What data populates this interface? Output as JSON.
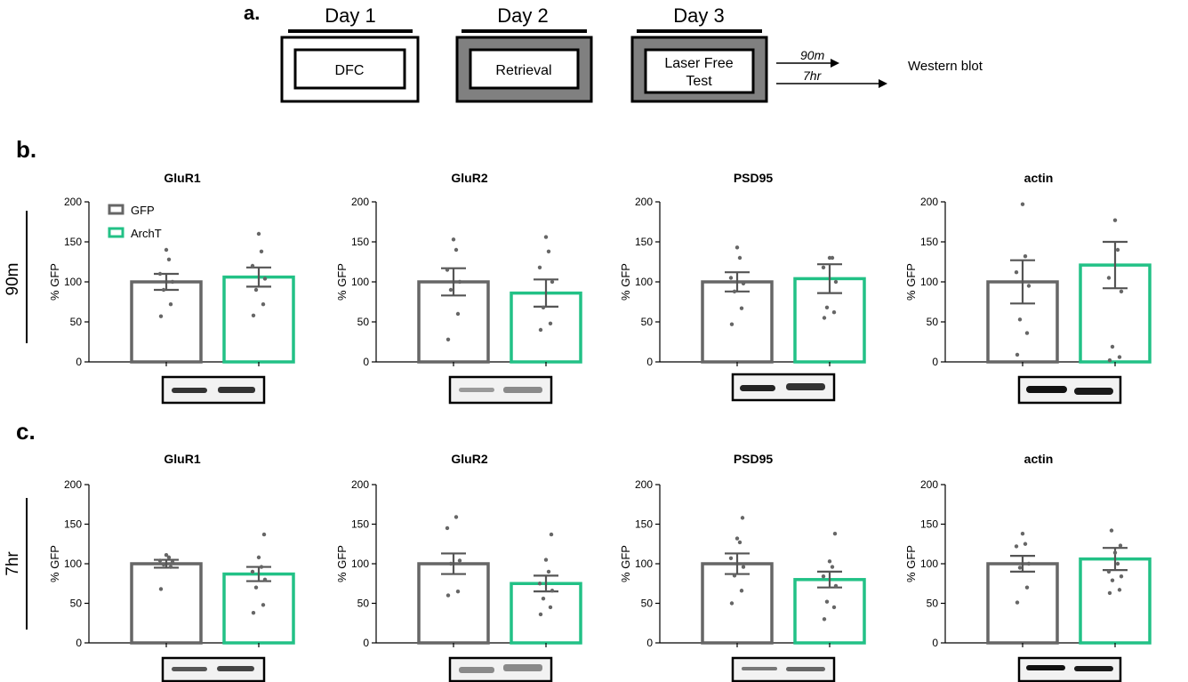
{
  "figure": {
    "panel_labels": {
      "a": "a.",
      "b": "b.",
      "c": "c."
    },
    "row_labels": {
      "row_90m": "90m",
      "row_7hr": "7hr"
    },
    "schematic": {
      "days": [
        {
          "label": "Day 1",
          "box_text": [
            "DFC"
          ],
          "fill": "#ffffff"
        },
        {
          "label": "Day 2",
          "box_text": [
            "Retrieval"
          ],
          "fill": "#808080"
        },
        {
          "label": "Day 3",
          "box_text": [
            "Laser Free",
            "Test"
          ],
          "fill": "#808080"
        }
      ],
      "arrows": [
        "90m",
        "7hr"
      ],
      "endpoint": "Western blot"
    },
    "legend": [
      {
        "name": "GFP",
        "color": "#666666"
      },
      {
        "name": "ArchT",
        "color": "#22c186"
      }
    ]
  },
  "chart_data": [
    {
      "type": "bar",
      "panel": "b",
      "timepoint": "90m",
      "title": "GluR1",
      "ylabel": "% GFP",
      "ylim": [
        0,
        200
      ],
      "yticks": [
        0,
        50,
        100,
        150,
        200
      ],
      "series": [
        {
          "name": "GFP",
          "value": 100,
          "sem": 10,
          "points": [
            57,
            72,
            90,
            100,
            110,
            128,
            140
          ]
        },
        {
          "name": "ArchT",
          "value": 106,
          "sem": 12,
          "points": [
            58,
            72,
            90,
            104,
            120,
            138,
            160
          ]
        }
      ]
    },
    {
      "type": "bar",
      "panel": "b",
      "timepoint": "90m",
      "title": "GluR2",
      "ylabel": "% GFP",
      "ylim": [
        0,
        200
      ],
      "yticks": [
        0,
        50,
        100,
        150,
        200
      ],
      "series": [
        {
          "name": "GFP",
          "value": 100,
          "sem": 17,
          "points": [
            28,
            60,
            90,
            100,
            115,
            140,
            153
          ]
        },
        {
          "name": "ArchT",
          "value": 86,
          "sem": 17,
          "points": [
            40,
            48,
            68,
            100,
            118,
            138,
            156
          ]
        }
      ]
    },
    {
      "type": "bar",
      "panel": "b",
      "timepoint": "90m",
      "title": "PSD95",
      "ylabel": "% GFP",
      "ylim": [
        0,
        200
      ],
      "yticks": [
        0,
        50,
        100,
        150,
        200
      ],
      "series": [
        {
          "name": "GFP",
          "value": 100,
          "sem": 12,
          "points": [
            47,
            67,
            88,
            98,
            105,
            130,
            143
          ]
        },
        {
          "name": "ArchT",
          "value": 104,
          "sem": 18,
          "points": [
            55,
            62,
            68,
            100,
            118,
            130,
            130
          ]
        }
      ]
    },
    {
      "type": "bar",
      "panel": "b",
      "timepoint": "90m",
      "title": "actin",
      "ylabel": "% GFP",
      "ylim": [
        0,
        200
      ],
      "yticks": [
        0,
        50,
        100,
        150,
        200
      ],
      "series": [
        {
          "name": "GFP",
          "value": 100,
          "sem": 27,
          "points": [
            9,
            36,
            53,
            95,
            112,
            132,
            197
          ]
        },
        {
          "name": "ArchT",
          "value": 121,
          "sem": 29,
          "points": [
            2,
            6,
            19,
            88,
            105,
            140,
            177
          ]
        }
      ]
    },
    {
      "type": "bar",
      "panel": "c",
      "timepoint": "7hr",
      "title": "GluR1",
      "ylabel": "% GFP",
      "ylim": [
        0,
        200
      ],
      "yticks": [
        0,
        50,
        100,
        150,
        200
      ],
      "series": [
        {
          "name": "GFP",
          "value": 100,
          "sem": 5,
          "points": [
            68,
            96,
            99,
            102,
            104,
            108,
            111
          ]
        },
        {
          "name": "ArchT",
          "value": 87,
          "sem": 9,
          "points": [
            38,
            48,
            70,
            80,
            90,
            96,
            108,
            137
          ]
        }
      ]
    },
    {
      "type": "bar",
      "panel": "c",
      "timepoint": "7hr",
      "title": "GluR2",
      "ylabel": "% GFP",
      "ylim": [
        0,
        200
      ],
      "yticks": [
        0,
        50,
        100,
        150,
        200
      ],
      "series": [
        {
          "name": "GFP",
          "value": 100,
          "sem": 13,
          "points": [
            60,
            65,
            100,
            104,
            145,
            159
          ]
        },
        {
          "name": "ArchT",
          "value": 75,
          "sem": 10,
          "points": [
            36,
            45,
            56,
            66,
            75,
            90,
            105,
            137
          ]
        }
      ]
    },
    {
      "type": "bar",
      "panel": "c",
      "timepoint": "7hr",
      "title": "PSD95",
      "ylabel": "% GFP",
      "ylim": [
        0,
        200
      ],
      "yticks": [
        0,
        50,
        100,
        150,
        200
      ],
      "series": [
        {
          "name": "GFP",
          "value": 100,
          "sem": 13,
          "points": [
            50,
            66,
            85,
            96,
            107,
            127,
            132,
            158
          ]
        },
        {
          "name": "ArchT",
          "value": 80,
          "sem": 10,
          "points": [
            30,
            45,
            52,
            72,
            84,
            96,
            103,
            138
          ]
        }
      ]
    },
    {
      "type": "bar",
      "panel": "c",
      "timepoint": "7hr",
      "title": "actin",
      "ylabel": "% GFP",
      "ylim": [
        0,
        200
      ],
      "yticks": [
        0,
        50,
        100,
        150,
        200
      ],
      "series": [
        {
          "name": "GFP",
          "value": 100,
          "sem": 10,
          "points": [
            51,
            70,
            95,
            100,
            122,
            125,
            138
          ]
        },
        {
          "name": "ArchT",
          "value": 106,
          "sem": 14,
          "points": [
            63,
            67,
            79,
            84,
            90,
            100,
            114,
            123,
            142
          ]
        }
      ]
    }
  ]
}
